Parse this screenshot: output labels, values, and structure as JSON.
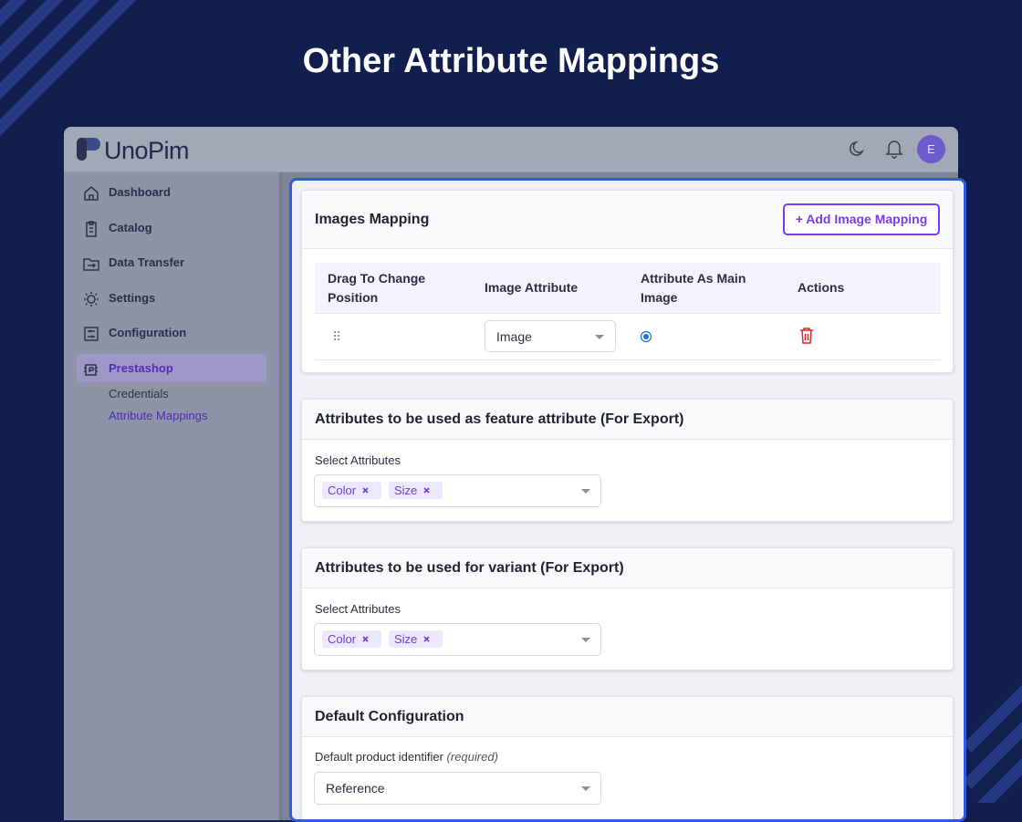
{
  "page_title": "Other Attribute Mappings",
  "app": {
    "logo": "UnoPim",
    "avatar": "E"
  },
  "sidebar": {
    "items": [
      "Dashboard",
      "Catalog",
      "Data Transfer",
      "Settings",
      "Configuration",
      "Prestashop"
    ],
    "subitems": [
      "Credentials",
      "Attribute Mappings"
    ]
  },
  "images_mapping": {
    "title": "Images Mapping",
    "button": "+ Add Image Mapping",
    "columns": [
      "Drag To Change Position",
      "Image Attribute",
      "Attribute As Main Image",
      "Actions"
    ],
    "rows": [
      {
        "image_attribute": "Image"
      }
    ]
  },
  "feature_attributes": {
    "title": "Attributes to be used as feature attribute (For Export)",
    "label": "Select Attributes",
    "tags": [
      "Color",
      "Size"
    ]
  },
  "variant_attributes": {
    "title": "Attributes to be used for variant (For Export)",
    "label": "Select Attributes",
    "tags": [
      "Color",
      "Size"
    ]
  },
  "default_configuration": {
    "title": "Default Configuration",
    "label": "Default product identifier",
    "required": "(required)",
    "value": "Reference"
  }
}
